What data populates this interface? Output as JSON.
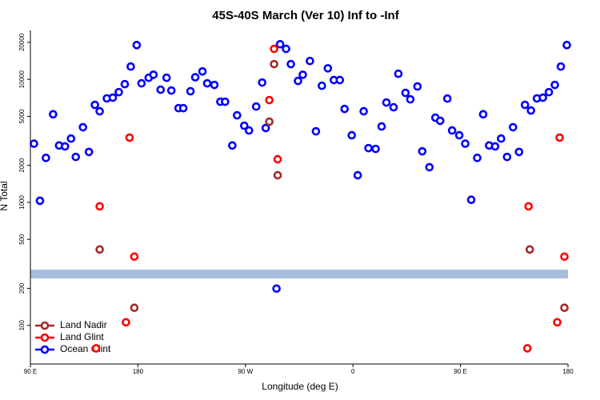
{
  "chart_data": {
    "type": "scatter",
    "title": "45S-40S March (Ver 10)   Inf to -Inf",
    "x_label": "Longitude (deg E)",
    "y_label": "N Total",
    "xlim": [
      90,
      540
    ],
    "ylim": [
      50,
      25000
    ],
    "log_y": true,
    "xticks": [
      {
        "value": 90,
        "label": "90 E"
      },
      {
        "value": 180,
        "label": "180"
      },
      {
        "value": 270,
        "label": "90 W"
      },
      {
        "value": 360,
        "label": "0"
      },
      {
        "value": 450,
        "label": "90 E"
      },
      {
        "value": 540,
        "label": "180"
      }
    ],
    "yticks": [
      100,
      200,
      500,
      1000,
      2000,
      5000,
      10000,
      20000
    ],
    "legend": "bottom-left",
    "series": [
      {
        "name": "Ocean Glint",
        "color": "#0000ff",
        "x": [
          93,
          98,
          103,
          109,
          114,
          119,
          124,
          128,
          134,
          139,
          144,
          148,
          154,
          159,
          164,
          169,
          174,
          179,
          183,
          189,
          193,
          199,
          204,
          208,
          214,
          218,
          224,
          228,
          234,
          238,
          244,
          249,
          253,
          259,
          263,
          269,
          273,
          279,
          284,
          287,
          296,
          299,
          304,
          308,
          314,
          318,
          324,
          329,
          334,
          339,
          344,
          349,
          353,
          359,
          364,
          369,
          373,
          379,
          384,
          388,
          394,
          398,
          404,
          408,
          414,
          418,
          424,
          429,
          433,
          439,
          443,
          449,
          454,
          459,
          464,
          469,
          474,
          479,
          484,
          489,
          494,
          499,
          504,
          509,
          514,
          519,
          524,
          529,
          534,
          539
        ],
        "values": [
          3000,
          1030,
          2300,
          5200,
          2900,
          2850,
          3300,
          2340,
          4080,
          2570,
          6200,
          5500,
          7000,
          7100,
          7870,
          9140,
          12700,
          19000,
          9280,
          10300,
          10900,
          8240,
          10300,
          8110,
          5830,
          5830,
          8000,
          10400,
          11600,
          9280,
          9010,
          6580,
          6580,
          2900,
          5100,
          4200,
          3840,
          6010,
          9420,
          4020,
          199,
          19300,
          17700,
          13300,
          9710,
          10900,
          14100,
          3780,
          8870,
          12300,
          9870,
          9870,
          5750,
          3510,
          1660,
          5500,
          2760,
          2720,
          4140,
          6480,
          5930,
          11100,
          7760,
          6880,
          8750,
          2600,
          1930,
          4880,
          4600,
          6980,
          3840,
          3510,
          3000,
          1050,
          2300,
          5200,
          2900,
          2850,
          3300,
          2340,
          4080,
          2570,
          6200,
          5580,
          7000,
          7100,
          7870,
          9010,
          12700,
          19000
        ]
      },
      {
        "name": "Land Glint",
        "color": "#ff0000",
        "x": [
          148,
          173,
          177,
          170,
          145,
          290,
          294,
          297,
          507,
          533,
          537,
          531,
          506
        ],
        "values": [
          928,
          3360,
          362,
          106,
          65,
          6780,
          17700,
          2240,
          928,
          3360,
          362,
          106,
          65
        ]
      },
      {
        "name": "Land Nadir",
        "color": "#a52a2a",
        "x": [
          148,
          177,
          290,
          294,
          297,
          508,
          537
        ],
        "values": [
          414,
          139,
          4530,
          13300,
          1660,
          414,
          139
        ]
      }
    ]
  }
}
